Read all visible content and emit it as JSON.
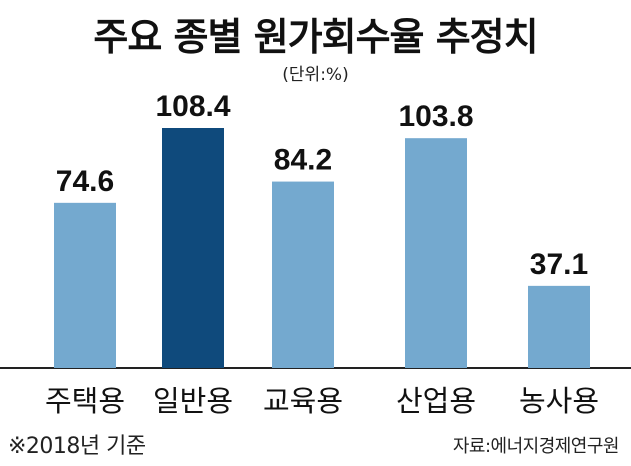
{
  "title": "주요 종별 원가회수율 추정치",
  "unit": "(단위:%)",
  "note": "※2018년 기준",
  "source": "자료:에너지경제연구원",
  "colors": {
    "normal": "#74a9cf",
    "highlight": "#0f4a7c",
    "axis": "#222222"
  },
  "chart_data": {
    "type": "bar",
    "categories": [
      "주택용",
      "일반용",
      "교육용",
      "산업용",
      "농사용"
    ],
    "values": [
      74.6,
      108.4,
      84.2,
      103.8,
      37.1
    ],
    "value_labels": [
      "74.6",
      "108.4",
      "84.2",
      "103.8",
      "37.1"
    ],
    "highlight_index": 1,
    "ylim": [
      0,
      120
    ],
    "grid": false,
    "legend": "none"
  }
}
